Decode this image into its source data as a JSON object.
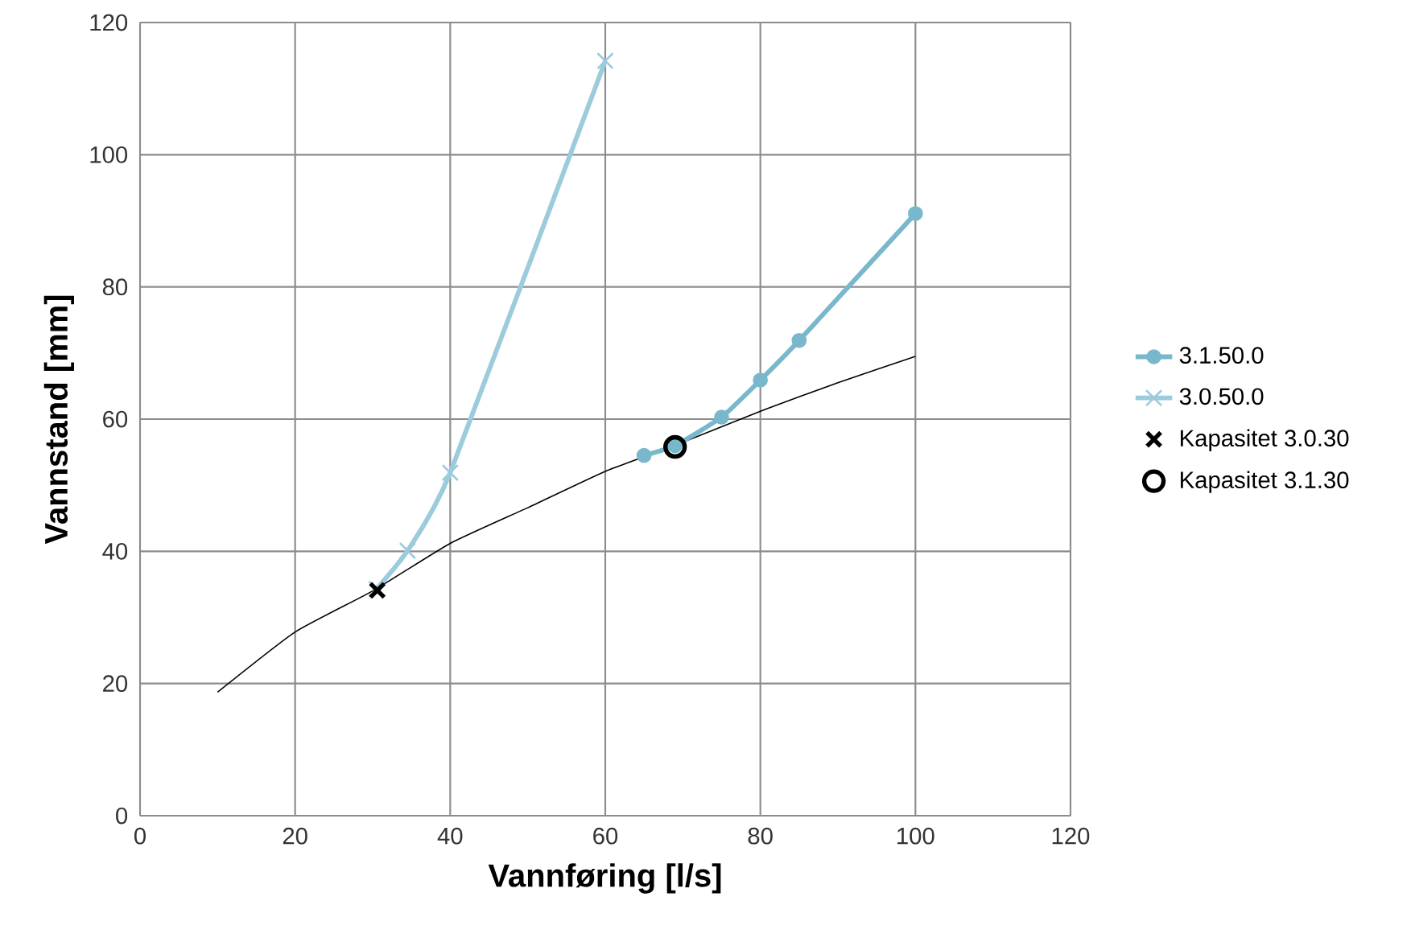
{
  "chart_data": {
    "type": "line",
    "xlabel": "Vannføring [l/s]",
    "ylabel": "Vannstand [mm]",
    "xlim": [
      0,
      120
    ],
    "xticks": [
      0,
      20,
      40,
      60,
      80,
      100,
      120
    ],
    "ylim": [
      0,
      120
    ],
    "yticks": [
      0,
      20,
      40,
      60,
      80,
      100,
      120
    ],
    "grid": true,
    "legend": "right",
    "series": [
      {
        "name": "3.1.50.0",
        "color": "#79b8cc",
        "marker": "circle",
        "x": [
          65,
          69,
          75,
          80,
          85,
          100
        ],
        "values": [
          54.5,
          56,
          60.3,
          65.9,
          71.9,
          91.1
        ]
      },
      {
        "name": "3.0.50.0",
        "color": "#9ccbdc",
        "marker": "cross",
        "x": [
          30.5,
          34.5,
          40,
          60
        ],
        "values": [
          34.3,
          40.1,
          51.9,
          114.2
        ]
      },
      {
        "name": "Kapasitet 3.0.30",
        "type": "scatter",
        "color": "#000000",
        "marker": "cross",
        "x": [
          30.6
        ],
        "values": [
          34.1
        ]
      },
      {
        "name": "Kapasitet 3.1.30",
        "type": "scatter",
        "color": "#000000",
        "marker": "circle",
        "x": [
          69
        ],
        "values": [
          55.8
        ]
      },
      {
        "color": "#000000",
        "marker": "none",
        "x": [
          10,
          20,
          30,
          40,
          50,
          60,
          70,
          80,
          90,
          100
        ],
        "values": [
          18.7,
          27.8,
          34,
          41.2,
          46.6,
          52.1,
          56.5,
          61.2,
          65.5,
          69.5
        ]
      }
    ]
  }
}
